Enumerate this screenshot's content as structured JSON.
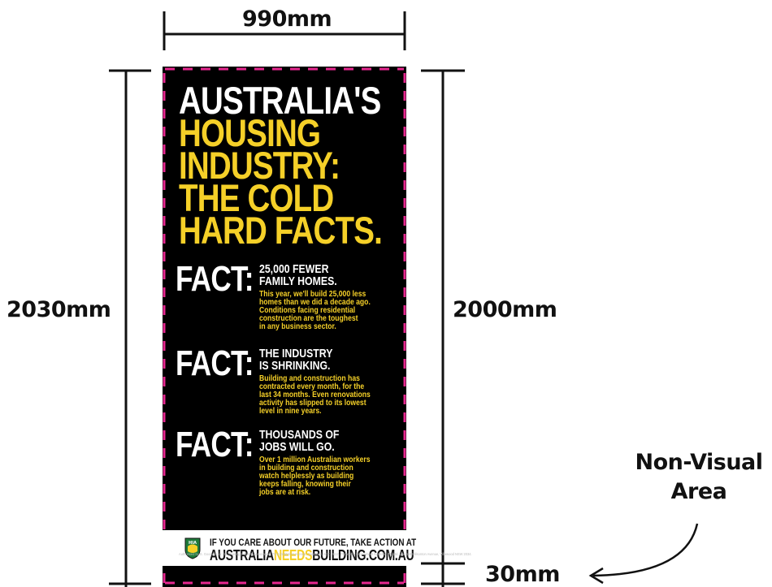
{
  "dimensions": {
    "width": "990mm",
    "total_height": "2030mm",
    "visual_height": "2000mm",
    "non_visual_height": "30mm",
    "non_visual_label_line1": "Non-Visual",
    "non_visual_label_line2": "Area"
  },
  "banner": {
    "headline": {
      "line1": "AUSTRALIA'S",
      "line2": "HOUSING",
      "line3": "INDUSTRY:",
      "line4": "THE COLD",
      "line5": "HARD FACTS."
    },
    "facts": [
      {
        "label": "FACT:",
        "head1": "25,000 FEWER",
        "head2": "FAMILY HOMES.",
        "body": [
          "This year, we'll build 25,000 less",
          "homes than we did a decade ago.",
          "Conditions facing residential",
          "construction are the toughest",
          "in any business sector."
        ]
      },
      {
        "label": "FACT:",
        "head1": "THE INDUSTRY",
        "head2": "IS SHRINKING.",
        "body": [
          "Building and construction has",
          "contracted every month, for the",
          "last 34 months. Even renovations",
          "activity has slipped to its lowest",
          "level in nine years."
        ]
      },
      {
        "label": "FACT:",
        "head1": "THOUSANDS OF",
        "head2": "JOBS WILL GO.",
        "body": [
          "Over 1 million Australian workers",
          "in building and construction",
          "watch helplessly as building",
          "keeps falling, knowing their",
          "jobs are at risk."
        ]
      }
    ],
    "cta_line1": "IF YOU CARE ABOUT OUR FUTURE, TAKE ACTION AT",
    "cta_part1": "AUSTRALIA",
    "cta_part2": "NEEDS",
    "cta_part3": "BUILDING.COM.AU",
    "logo_text": "HIA",
    "authorisation": "Authorised by S. Goodwin for the Housing Industry Association, 79 Constitution Avenue, Campbell, ACT, 2612. Printed by Broadsheet Australia Pty Ltd. Unit 1-8 Wilsonton Avenue, Villawood NSW 2034."
  },
  "colors": {
    "accent_yellow": "#f5d028",
    "dash_magenta": "#e6278f",
    "banner_background": "#000000"
  }
}
